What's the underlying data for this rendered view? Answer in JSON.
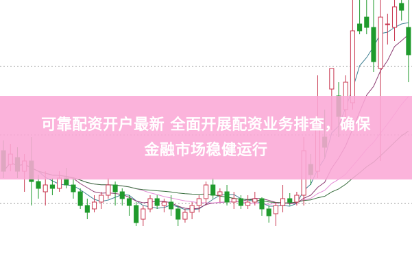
{
  "headline": {
    "line1": "可靠配资开户最新 全面开展配资业务排查，确保",
    "line2": "金融市场稳健运行"
  },
  "colors": {
    "up": "#c8344e",
    "down": "#1f9a2c",
    "grid": "#9a9a9a",
    "banner": "#faa8d6",
    "ma": [
      "#3f7f92",
      "#8c3b72",
      "#e58bd6",
      "#356b3a"
    ]
  },
  "chart_data": {
    "type": "candlestick",
    "grid": "horizontal dotted",
    "moving_averages": [
      5,
      10,
      20,
      30
    ],
    "ohlc": [
      [
        180,
        150,
        195,
        140
      ],
      [
        160,
        175,
        190,
        150
      ],
      [
        170,
        150,
        185,
        140
      ],
      [
        150,
        165,
        175,
        120
      ],
      [
        165,
        135,
        200,
        100
      ],
      [
        135,
        125,
        145,
        110
      ],
      [
        120,
        130,
        150,
        100
      ],
      [
        130,
        125,
        140,
        115
      ],
      [
        125,
        140,
        150,
        120
      ],
      [
        140,
        130,
        155,
        125
      ],
      [
        130,
        120,
        140,
        110
      ],
      [
        120,
        100,
        125,
        95
      ],
      [
        100,
        90,
        110,
        80
      ],
      [
        95,
        105,
        115,
        90
      ],
      [
        105,
        115,
        120,
        95
      ],
      [
        115,
        130,
        140,
        110
      ],
      [
        130,
        120,
        135,
        100
      ],
      [
        120,
        110,
        125,
        100
      ],
      [
        110,
        100,
        115,
        85
      ],
      [
        100,
        75,
        105,
        70
      ],
      [
        80,
        95,
        100,
        70
      ],
      [
        95,
        110,
        115,
        90
      ],
      [
        110,
        100,
        115,
        95
      ],
      [
        100,
        105,
        110,
        90
      ],
      [
        105,
        95,
        115,
        85
      ],
      [
        95,
        80,
        100,
        70
      ],
      [
        80,
        90,
        95,
        75
      ],
      [
        90,
        100,
        105,
        80
      ],
      [
        100,
        110,
        115,
        90
      ],
      [
        110,
        130,
        135,
        100
      ],
      [
        130,
        115,
        140,
        110
      ],
      [
        115,
        120,
        125,
        105
      ],
      [
        120,
        105,
        130,
        100
      ],
      [
        105,
        110,
        120,
        95
      ],
      [
        110,
        100,
        115,
        95
      ],
      [
        100,
        105,
        115,
        95
      ],
      [
        105,
        110,
        120,
        100
      ],
      [
        110,
        95,
        112,
        85
      ],
      [
        95,
        85,
        100,
        75
      ],
      [
        88,
        100,
        105,
        70
      ],
      [
        100,
        110,
        130,
        90
      ],
      [
        110,
        105,
        118,
        100
      ],
      [
        105,
        115,
        120,
        100
      ],
      [
        115,
        180,
        200,
        100
      ],
      [
        160,
        145,
        175,
        130
      ],
      [
        150,
        220,
        290,
        140
      ],
      [
        200,
        185,
        240,
        170
      ],
      [
        270,
        300,
        300,
        210
      ],
      [
        260,
        230,
        280,
        200
      ],
      [
        240,
        280,
        290,
        210
      ],
      [
        250,
        355,
        400,
        240
      ],
      [
        365,
        355,
        400,
        350
      ],
      [
        375,
        360,
        400,
        350
      ],
      [
        360,
        310,
        400,
        295
      ],
      [
        300,
        375,
        400,
        165
      ],
      [
        365,
        365,
        380,
        335
      ],
      [
        360,
        390,
        400,
        340
      ],
      [
        395,
        385,
        400,
        370
      ],
      [
        360,
        320,
        400,
        280
      ]
    ]
  }
}
